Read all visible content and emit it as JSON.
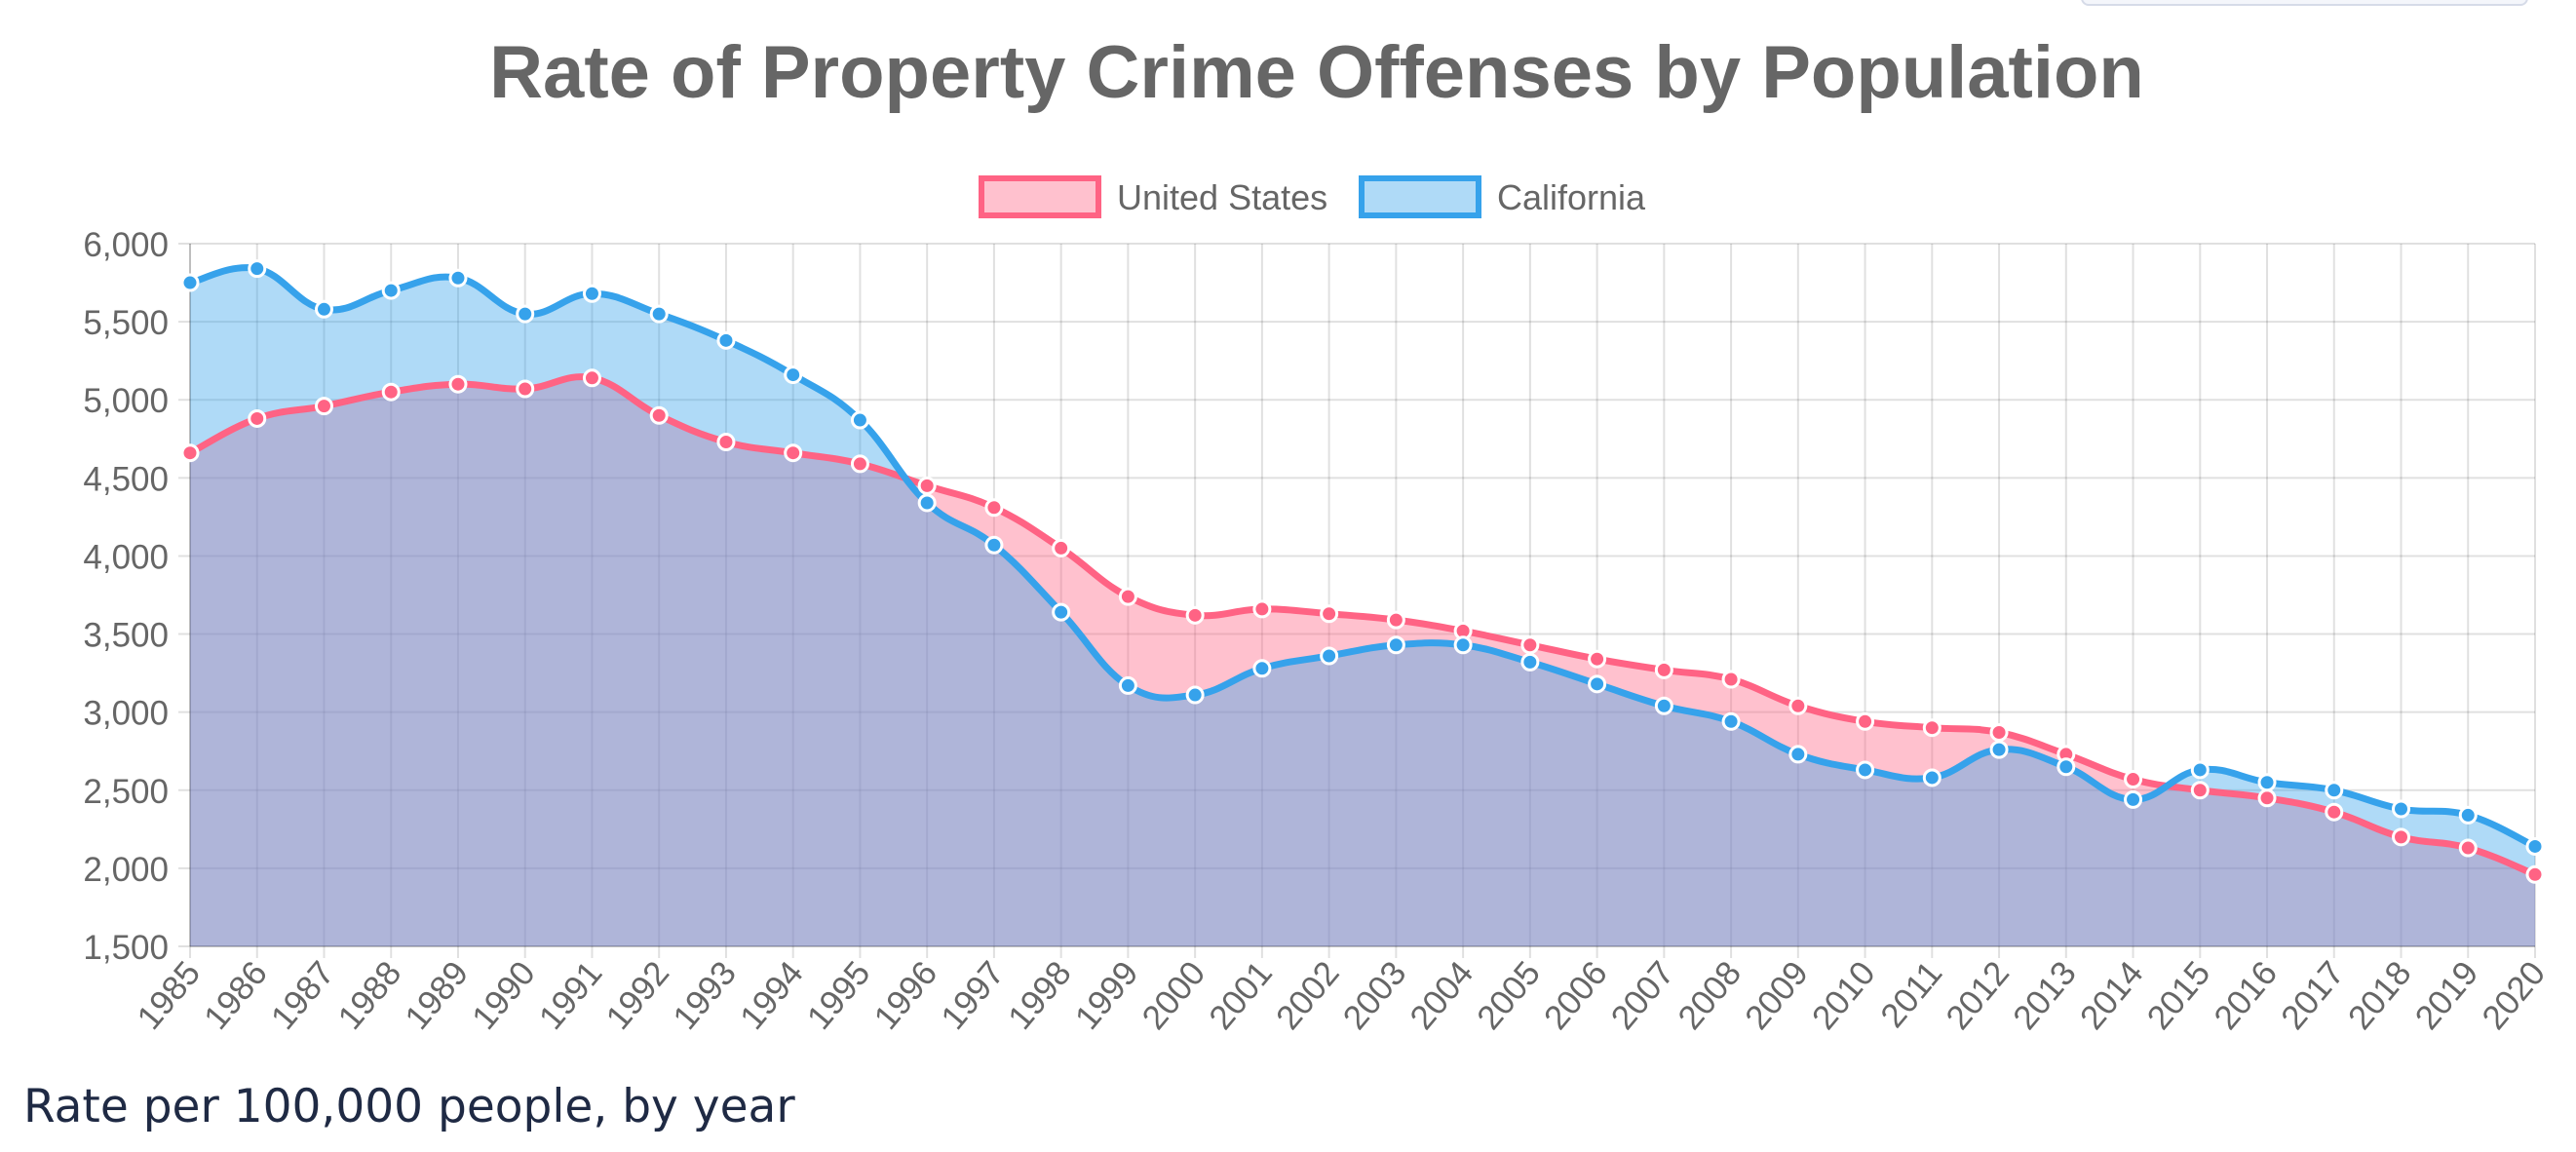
{
  "caption": "Rate per 100,000 people, by year",
  "chart_data": {
    "type": "area",
    "title": "Rate of Property Crime Offenses by Population",
    "xlabel": "",
    "ylabel": "",
    "ylim": [
      1500,
      6000
    ],
    "yticks": [
      "6,000",
      "5,500",
      "5,000",
      "4,500",
      "4,000",
      "3,500",
      "3,000",
      "2,500",
      "2,000",
      "1,500"
    ],
    "grid": true,
    "legend": "top-center",
    "categories": [
      "1985",
      "1986",
      "1987",
      "1988",
      "1989",
      "1990",
      "1991",
      "1992",
      "1993",
      "1994",
      "1995",
      "1996",
      "1997",
      "1998",
      "1999",
      "2000",
      "2001",
      "2002",
      "2003",
      "2004",
      "2005",
      "2006",
      "2007",
      "2008",
      "2009",
      "2010",
      "2011",
      "2012",
      "2013",
      "2014",
      "2015",
      "2016",
      "2017",
      "2018",
      "2019",
      "2020"
    ],
    "series": [
      {
        "name": "United States",
        "color": "#ff6384",
        "fill": "rgba(255,99,132,0.4)",
        "values": [
          4660,
          4880,
          4960,
          5050,
          5100,
          5070,
          5140,
          4900,
          4730,
          4660,
          4590,
          4450,
          4310,
          4050,
          3740,
          3620,
          3660,
          3630,
          3590,
          3520,
          3430,
          3340,
          3270,
          3210,
          3040,
          2940,
          2900,
          2870,
          2730,
          2570,
          2500,
          2450,
          2360,
          2200,
          2130,
          1960
        ]
      },
      {
        "name": "California",
        "color": "#36a2eb",
        "fill": "rgba(54,162,235,0.4)",
        "values": [
          5750,
          5840,
          5580,
          5700,
          5780,
          5550,
          5680,
          5550,
          5380,
          5160,
          4870,
          4340,
          4070,
          3640,
          3170,
          3110,
          3280,
          3360,
          3430,
          3430,
          3320,
          3180,
          3040,
          2940,
          2730,
          2630,
          2580,
          2760,
          2650,
          2440,
          2630,
          2550,
          2500,
          2380,
          2340,
          2140
        ]
      }
    ]
  }
}
